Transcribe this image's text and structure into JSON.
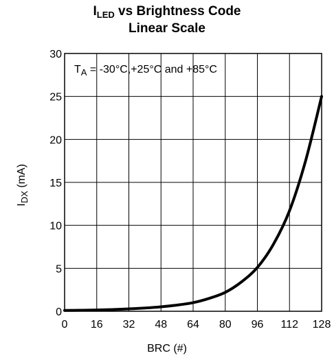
{
  "chart_data": {
    "type": "line",
    "title_main": "I",
    "title_sub": "LED",
    "title_rest": " vs Brightness Code",
    "subtitle": "Linear Scale",
    "xlabel": "BRC (#)",
    "ylabel_main": "I",
    "ylabel_sub": "DX",
    "ylabel_rest": " (mA)",
    "annotation_main": "T",
    "annotation_sub": "A",
    "annotation_rest": " = -30°C,+25°C and +85°C",
    "xlim": [
      0,
      128
    ],
    "ylim": [
      0,
      30
    ],
    "x_ticks": [
      "0",
      "16",
      "32",
      "48",
      "64",
      "80",
      "96",
      "112",
      "128"
    ],
    "y_ticks": [
      "0",
      "5",
      "10",
      "15",
      "20",
      "25",
      "30"
    ],
    "grid": true,
    "series": [
      {
        "x": [
          0,
          8,
          16,
          24,
          32,
          40,
          48,
          56,
          64,
          72,
          80,
          88,
          96,
          104,
          112,
          120,
          128
        ],
        "y": [
          0.1,
          0.12,
          0.15,
          0.2,
          0.28,
          0.38,
          0.52,
          0.72,
          1.0,
          1.5,
          2.2,
          3.4,
          5.1,
          7.8,
          11.7,
          17.5,
          25.0
        ]
      }
    ],
    "line_color": "#000000"
  }
}
